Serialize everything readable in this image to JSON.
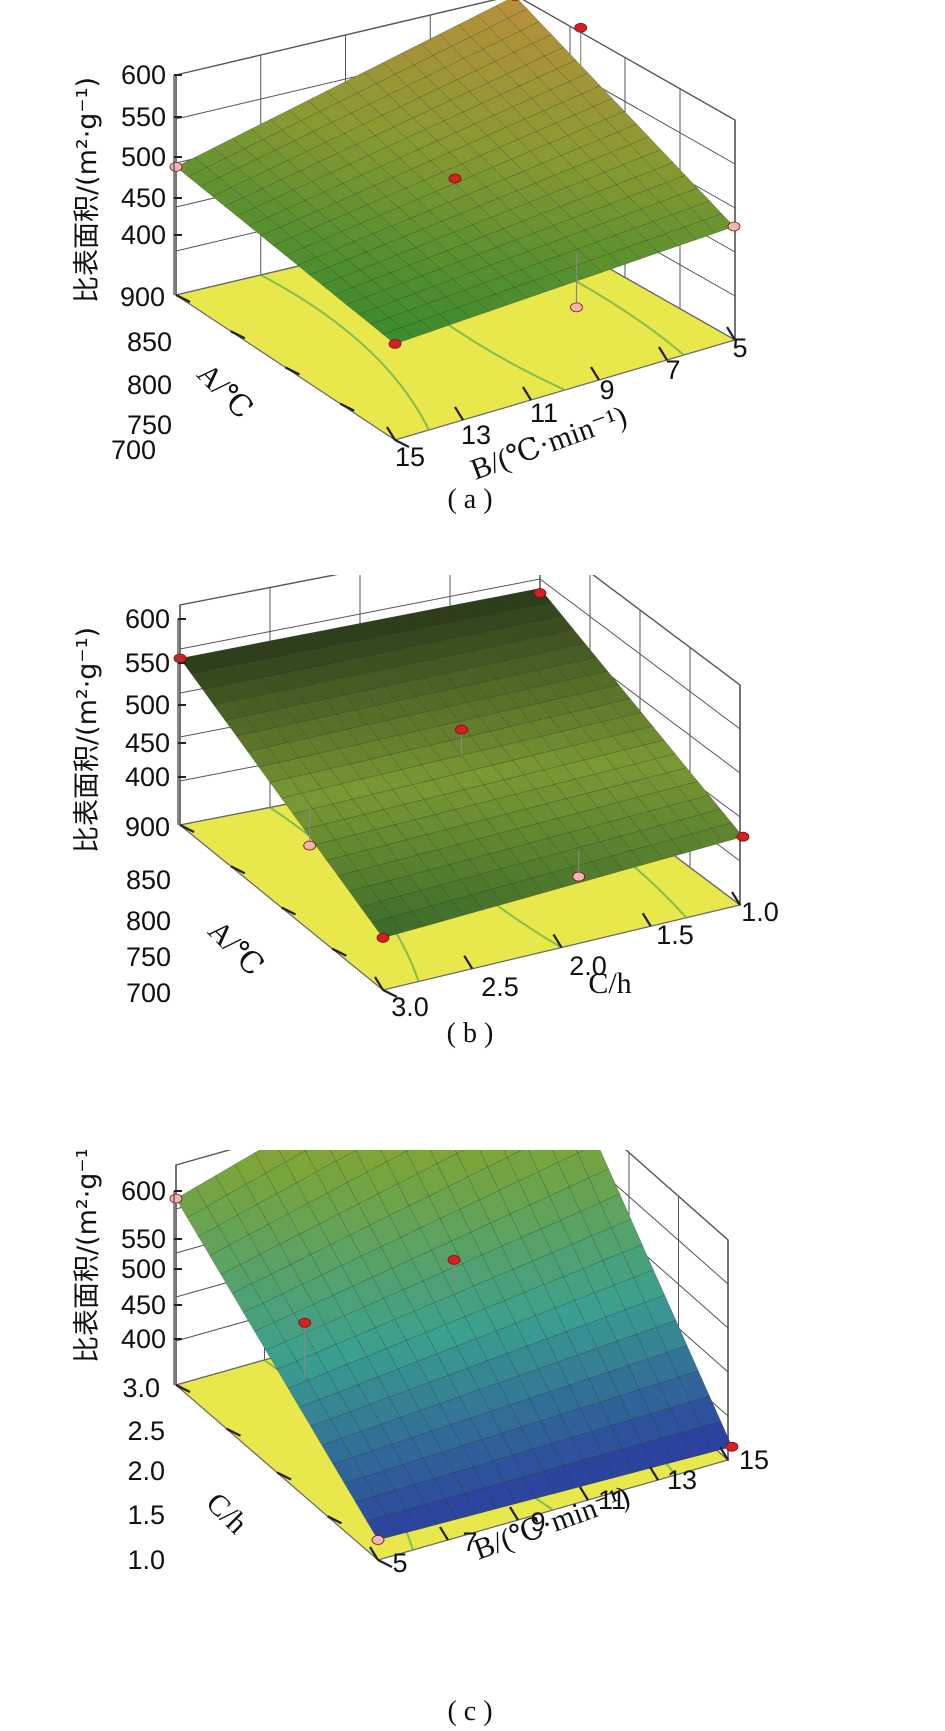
{
  "colors": {
    "floor": "#e8e84c",
    "floor_shadow": "#d6d440",
    "contour": "#5faf52",
    "grid": "#555555",
    "design_point_above": "#d42020",
    "design_point_below": "#f0b6b6"
  },
  "chart_data": [
    {
      "type": "surface3d",
      "caption": "( a )",
      "zlabel": "比表面积/(m²·g⁻¹)",
      "z_ticks": [
        "600",
        "550",
        "500",
        "450",
        "400"
      ],
      "zlim": [
        380,
        600
      ],
      "x_axis_label": "A/℃",
      "x_ticks": [
        "900",
        "850",
        "800",
        "750",
        "700"
      ],
      "y_axis_label": "B/(℃·min⁻¹)",
      "y_ticks": [
        "15",
        "13",
        "11",
        "9",
        "7",
        "5"
      ],
      "surface_corners": {
        "back": 585,
        "left": 500,
        "right": 505,
        "front": 470
      },
      "surface_colormap": [
        "#3a8a2e",
        "#8a9a32",
        "#b98f3c"
      ],
      "design_points": [
        {
          "position": "left",
          "z": 500,
          "type": "below"
        },
        {
          "position": "front",
          "z": 470,
          "type": "above"
        },
        {
          "position": "right",
          "z": 505,
          "type": "below"
        },
        {
          "position": "back",
          "z": 585,
          "type": "below"
        },
        {
          "position": "center",
          "z": 520,
          "type": "above"
        },
        {
          "position": "back-right",
          "z": 600,
          "type": "above"
        },
        {
          "position": "right-mid",
          "z": 440,
          "type": "below"
        }
      ]
    },
    {
      "type": "surface3d",
      "caption": "( b )",
      "zlabel": "比表面积/(m²·g⁻¹)",
      "z_ticks": [
        "600",
        "550",
        "500",
        "450",
        "400"
      ],
      "zlim": [
        380,
        600
      ],
      "x_axis_label": "A/℃",
      "x_ticks": [
        "900",
        "850",
        "800",
        "750",
        "700"
      ],
      "y_axis_label": "C/h",
      "y_ticks": [
        "3.0",
        "2.5",
        "2.0",
        "1.5",
        "1.0"
      ],
      "surface_corners": {
        "back": 540,
        "left": 540,
        "right": 460,
        "front": 430
      },
      "surface_colormap": [
        "#3a6a2a",
        "#7a9a34",
        "#2a3a1a"
      ],
      "design_points": [
        {
          "position": "left",
          "z": 540,
          "type": "above"
        },
        {
          "position": "front",
          "z": 430,
          "type": "above"
        },
        {
          "position": "right",
          "z": 460,
          "type": "above"
        },
        {
          "position": "back",
          "z": 535,
          "type": "above"
        },
        {
          "position": "center",
          "z": 520,
          "type": "above"
        },
        {
          "position": "left-mid",
          "z": 440,
          "type": "below"
        },
        {
          "position": "right-mid",
          "z": 430,
          "type": "below"
        }
      ]
    },
    {
      "type": "surface3d",
      "caption": "( c )",
      "zlabel": "比表面积/(m²·g⁻¹)",
      "z_ticks": [
        "600",
        "550",
        "500",
        "450",
        "400"
      ],
      "zlim": [
        380,
        600
      ],
      "x_axis_label": "C/h",
      "x_ticks": [
        "3.0",
        "2.5",
        "2.0",
        "1.5",
        "1.0"
      ],
      "y_axis_label": "B/(℃·min⁻¹)",
      "y_ticks": [
        "5",
        "7",
        "9",
        "11",
        "13",
        "15"
      ],
      "surface_corners": {
        "back": 600,
        "left": 520,
        "right": 390,
        "front": 395
      },
      "surface_colormap": [
        "#2a3aa0",
        "#3aa090",
        "#7aa53a",
        "#c49a3c"
      ],
      "design_points": [
        {
          "position": "left",
          "z": 520,
          "type": "below"
        },
        {
          "position": "front",
          "z": 395,
          "type": "below"
        },
        {
          "position": "right",
          "z": 390,
          "type": "above"
        },
        {
          "position": "back",
          "z": 600,
          "type": "above"
        },
        {
          "position": "center",
          "z": 505,
          "type": "above"
        },
        {
          "position": "left-mid",
          "z": 500,
          "type": "above"
        }
      ]
    }
  ]
}
